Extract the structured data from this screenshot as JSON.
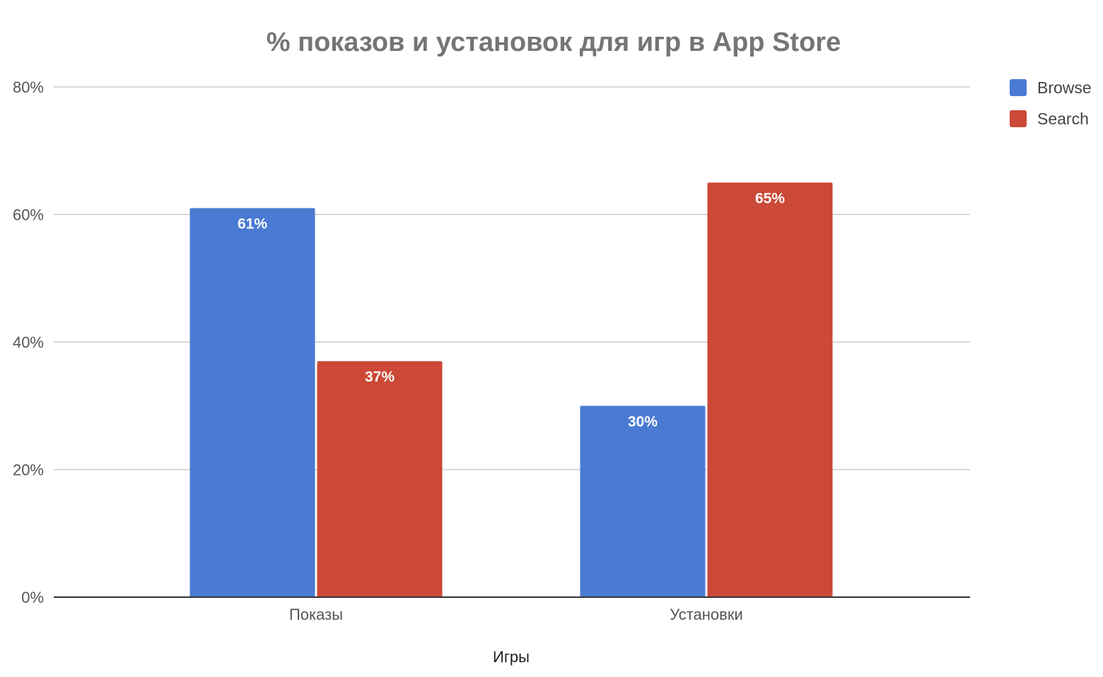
{
  "chart_data": {
    "type": "bar",
    "title": "% показов и установок для игр в App Store",
    "xlabel": "Игры",
    "ylabel": "",
    "categories": [
      "Показы",
      "Установки"
    ],
    "series": [
      {
        "name": "Browse",
        "values": [
          61,
          30
        ],
        "color": "#4a7bd3"
      },
      {
        "name": "Search",
        "values": [
          37,
          65
        ],
        "color": "#cc4837"
      }
    ],
    "data_labels": [
      [
        "61%",
        "30%"
      ],
      [
        "37%",
        "65%"
      ]
    ],
    "ylim": [
      0,
      80
    ],
    "yticks": [
      0,
      20,
      40,
      60,
      80
    ],
    "ytick_labels": [
      "0%",
      "20%",
      "40%",
      "60%",
      "80%"
    ],
    "grid": true,
    "legend_position": "top-right"
  }
}
